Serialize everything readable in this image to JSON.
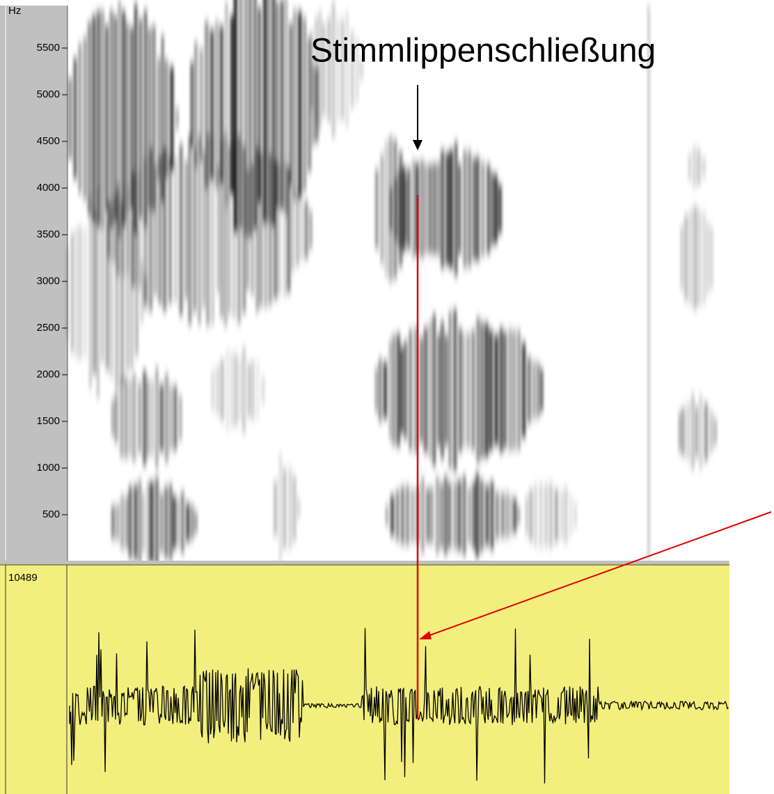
{
  "annotation": "Stimmlippenschließung",
  "spectrogram": {
    "axis_label": "Hz",
    "yticks": [
      5500,
      5000,
      4500,
      4000,
      3500,
      3000,
      2500,
      2000,
      1500,
      1000,
      500
    ]
  },
  "waveform": {
    "max_label": "10489"
  }
}
